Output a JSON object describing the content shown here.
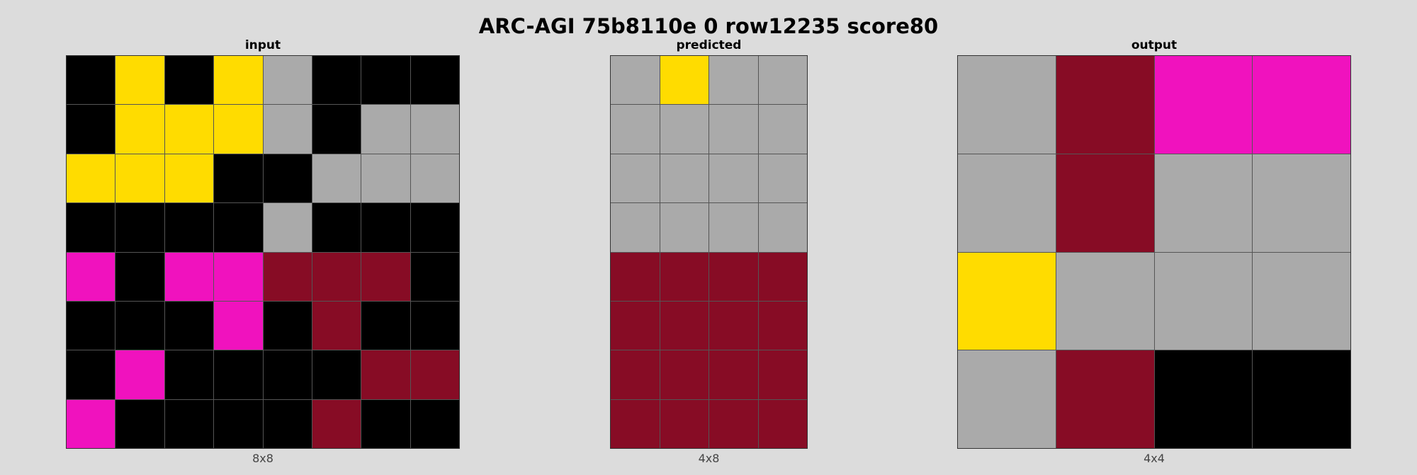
{
  "title": "ARC-AGI 75b8110e 0 row12235 score80",
  "palette": {
    "0": "#000000",
    "4": "#FFDC00",
    "5": "#AAAAAA",
    "6": "#F012BE",
    "9": "#870C25"
  },
  "panels": [
    {
      "label": "input",
      "dims": "8x8",
      "grid": [
        [
          0,
          4,
          0,
          4,
          5,
          0,
          0,
          0
        ],
        [
          0,
          4,
          4,
          4,
          5,
          0,
          5,
          5
        ],
        [
          4,
          4,
          4,
          0,
          0,
          5,
          5,
          5
        ],
        [
          0,
          0,
          0,
          0,
          5,
          0,
          0,
          0
        ],
        [
          6,
          0,
          6,
          6,
          9,
          9,
          9,
          0
        ],
        [
          0,
          0,
          0,
          6,
          0,
          9,
          0,
          0
        ],
        [
          0,
          6,
          0,
          0,
          0,
          0,
          9,
          9
        ],
        [
          6,
          0,
          0,
          0,
          0,
          9,
          0,
          0
        ]
      ]
    },
    {
      "label": "predicted",
      "dims": "4x8",
      "grid": [
        [
          5,
          4,
          5,
          5
        ],
        [
          5,
          5,
          5,
          5
        ],
        [
          5,
          5,
          5,
          5
        ],
        [
          5,
          5,
          5,
          5
        ],
        [
          9,
          9,
          9,
          9
        ],
        [
          9,
          9,
          9,
          9
        ],
        [
          9,
          9,
          9,
          9
        ],
        [
          9,
          9,
          9,
          9
        ]
      ]
    },
    {
      "label": "output",
      "dims": "4x4",
      "grid": [
        [
          5,
          9,
          6,
          6
        ],
        [
          5,
          9,
          5,
          5
        ],
        [
          4,
          5,
          5,
          5
        ],
        [
          5,
          9,
          0,
          0
        ]
      ]
    }
  ]
}
